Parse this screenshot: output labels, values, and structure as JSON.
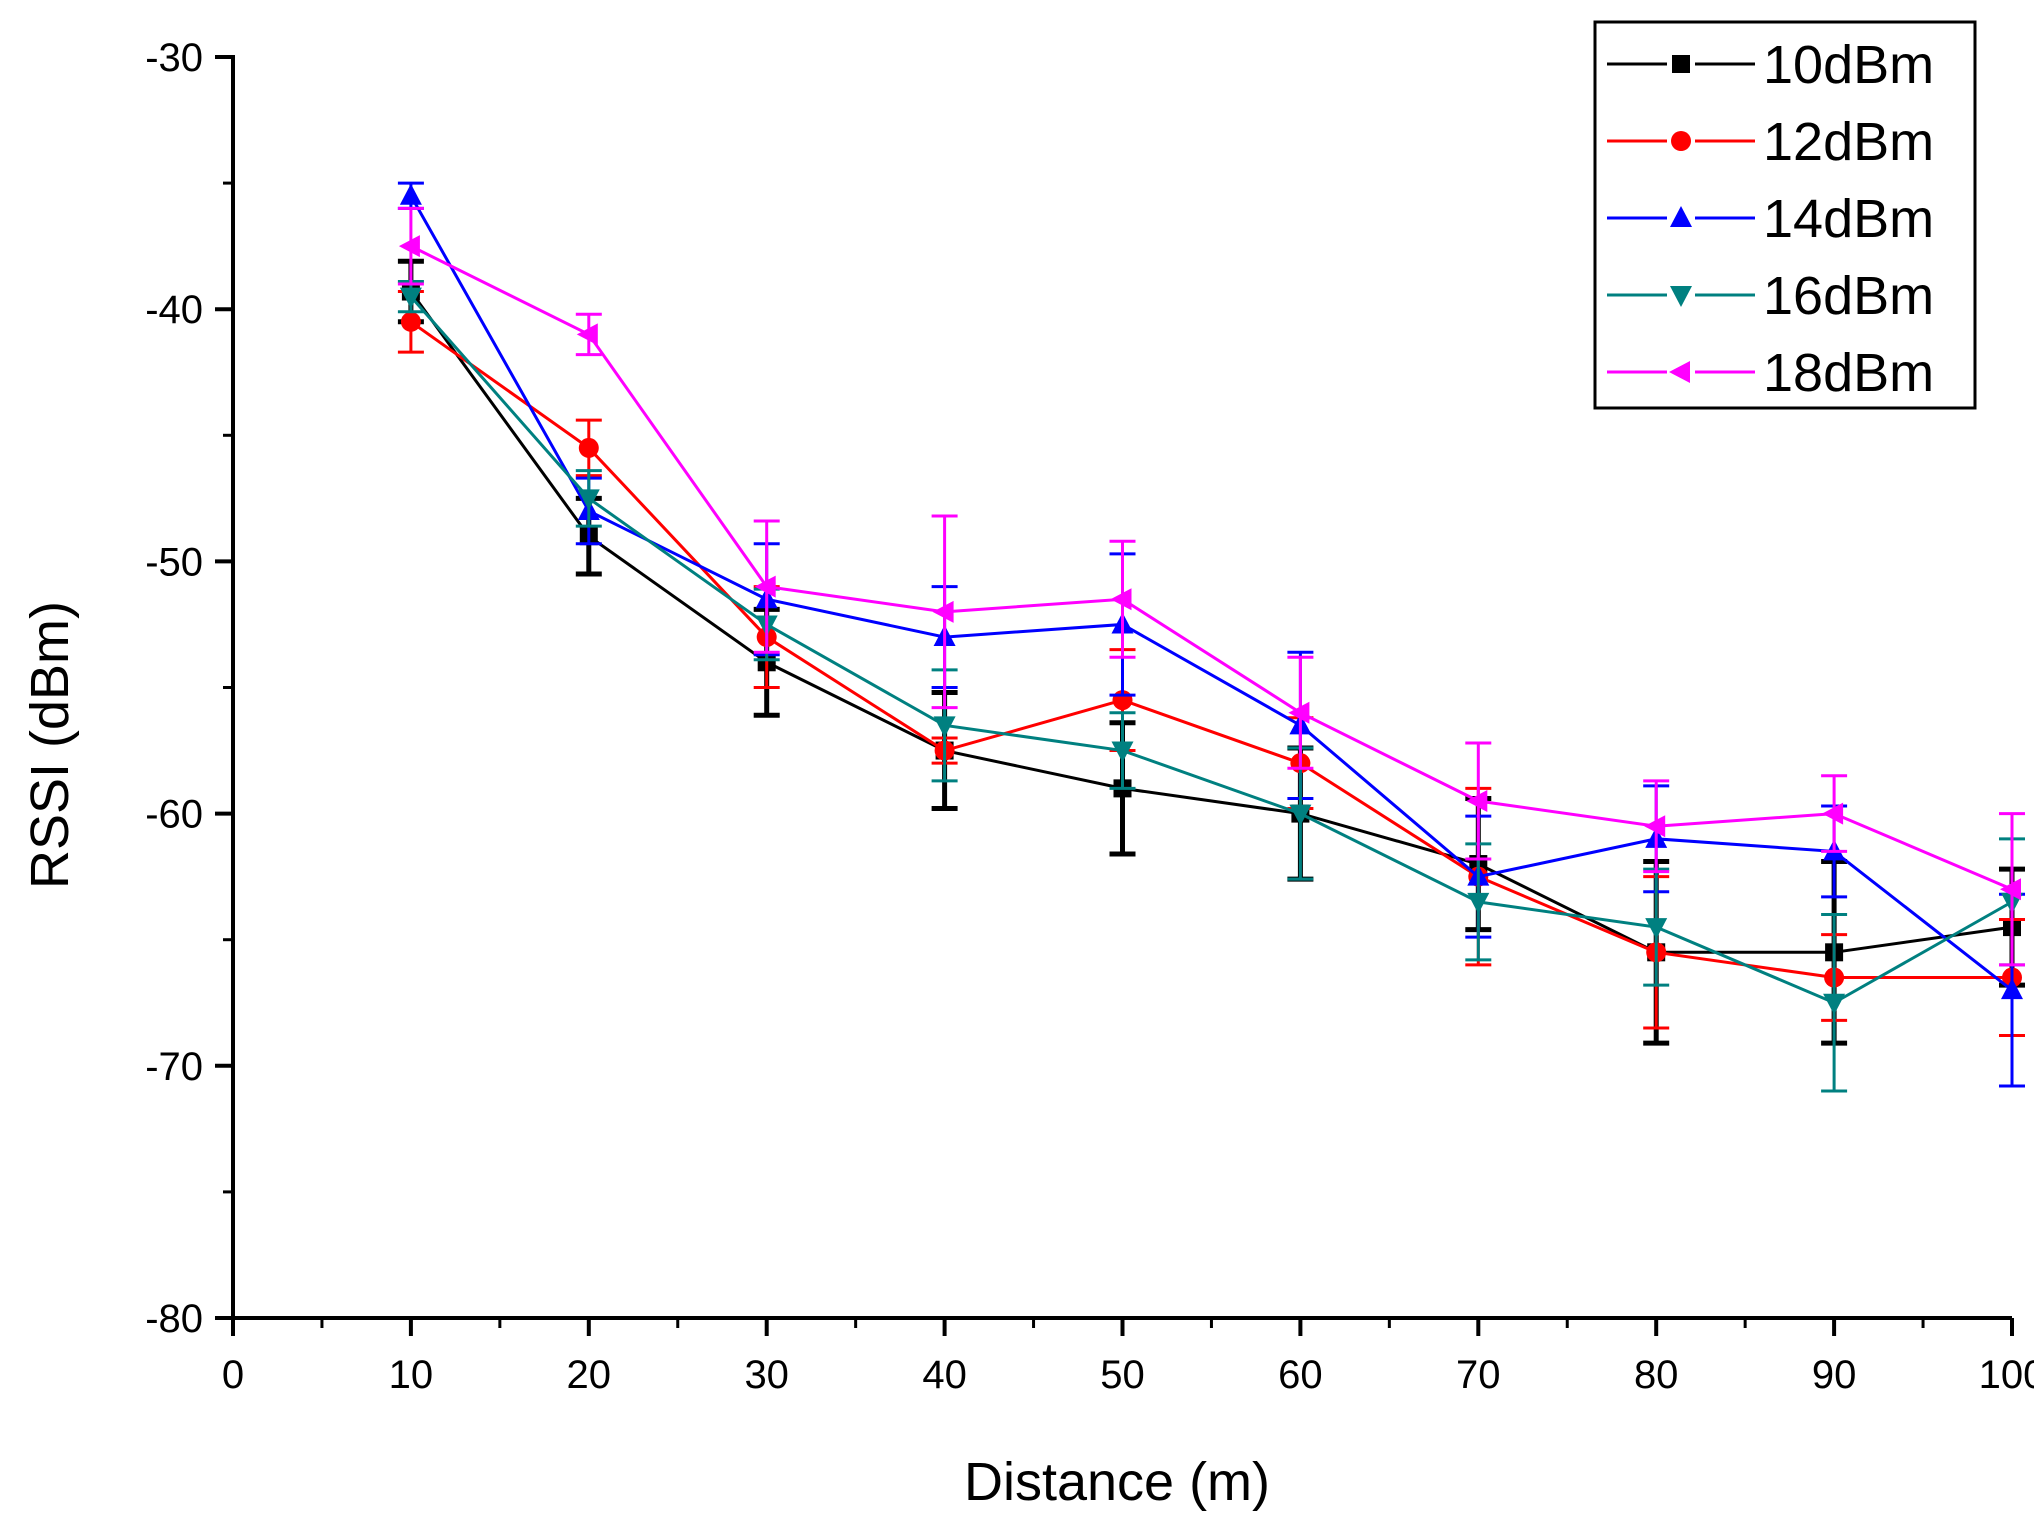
{
  "chart_data": {
    "type": "line",
    "title": "",
    "xlabel": "Distance (m)",
    "ylabel": "RSSI (dBm)",
    "xlim": [
      0,
      100
    ],
    "ylim": [
      -80,
      -30
    ],
    "x_ticks": [
      "0",
      "10",
      "20",
      "30",
      "40",
      "50",
      "60",
      "70",
      "80",
      "90",
      "100"
    ],
    "y_ticks": [
      "-30",
      "-40",
      "-50",
      "-60",
      "-70",
      "-80"
    ],
    "x": [
      10,
      20,
      30,
      40,
      50,
      60,
      70,
      80,
      90,
      100
    ],
    "legend_position": "top-right",
    "grid": false,
    "series": [
      {
        "name": "10dBm",
        "color": "#000000",
        "marker": "square",
        "values": [
          -39.3,
          -49,
          -54,
          -57.5,
          -59,
          -60,
          -62,
          -65.5,
          -65.5,
          -64.5
        ],
        "errors": [
          1.2,
          1.5,
          2.1,
          2.3,
          2.6,
          2.6,
          2.6,
          3.6,
          3.6,
          2.3
        ]
      },
      {
        "name": "12dBm",
        "color": "#ff0000",
        "marker": "circle",
        "values": [
          -40.5,
          -45.5,
          -53,
          -57.5,
          -55.5,
          -58,
          -62.5,
          -65.5,
          -66.5,
          -66.5
        ],
        "errors": [
          1.2,
          1.1,
          2,
          0.5,
          2,
          1.8,
          3.5,
          3,
          1.7,
          2.3
        ]
      },
      {
        "name": "14dBm",
        "color": "#0000ff",
        "marker": "triangle-up",
        "values": [
          -35.5,
          -48,
          -51.5,
          -53,
          -52.5,
          -56.5,
          -62.5,
          -61,
          -61.5,
          -67
        ],
        "errors": [
          0.5,
          1.3,
          2.2,
          2,
          2.8,
          2.9,
          2.4,
          2.1,
          1.8,
          3.8
        ]
      },
      {
        "name": "16dBm",
        "color": "#008080",
        "marker": "triangle-down",
        "values": [
          -39.5,
          -47.5,
          -52.5,
          -56.5,
          -57.5,
          -60,
          -63.5,
          -64.5,
          -67.5,
          -63.5
        ],
        "errors": [
          0.6,
          1.1,
          1.4,
          2.2,
          1.5,
          2.6,
          2.3,
          2.3,
          3.5,
          2.5
        ]
      },
      {
        "name": "18dBm",
        "color": "#ff00ff",
        "marker": "triangle-left",
        "values": [
          -37.5,
          -41,
          -51,
          -52,
          -51.5,
          -56,
          -59.5,
          -60.5,
          -60,
          -63
        ],
        "errors": [
          1.5,
          0.8,
          2.6,
          3.8,
          2.3,
          2.2,
          2.3,
          1.8,
          1.5,
          3
        ]
      }
    ]
  }
}
